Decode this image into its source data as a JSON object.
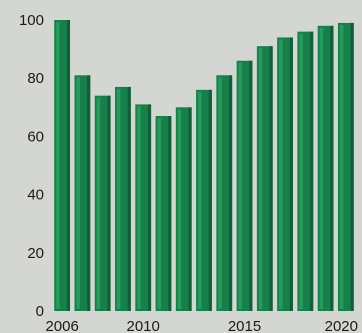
{
  "chart_data": {
    "type": "bar",
    "title": "",
    "xlabel": "",
    "ylabel": "",
    "ylim": [
      0,
      100
    ],
    "yticks": [
      0,
      20,
      40,
      60,
      80,
      100
    ],
    "xticks": [
      "2006",
      "2010",
      "2015",
      "2020"
    ],
    "grid": false,
    "legend": "none",
    "categories": [
      "2006",
      "2007",
      "2008",
      "2009",
      "2010",
      "2011",
      "2012",
      "2013",
      "2014",
      "2015",
      "2016",
      "2017",
      "2018",
      "2019",
      "2020"
    ],
    "values": [
      100,
      81,
      74,
      77,
      71,
      67,
      70,
      76,
      81,
      86,
      91,
      94,
      96,
      98,
      99
    ],
    "colors": {
      "bar": "#17804a",
      "bar_highlight": "#2fb56a",
      "bar_shadow": "#0d4a2a",
      "background": "#d4d6d2"
    }
  }
}
